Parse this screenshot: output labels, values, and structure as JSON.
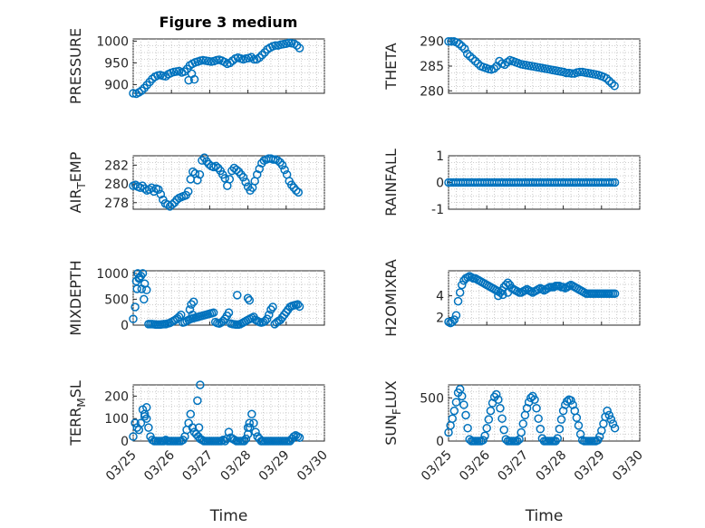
{
  "figure": {
    "title": "Figure 3 medium",
    "marker_color": "#0072BD"
  },
  "chart_data": [
    {
      "type": "scatter",
      "title": "Figure 3 medium",
      "ylabel": "PRESSURE",
      "xlim": [
        0,
        5
      ],
      "ylim": [
        880,
        1005
      ],
      "yticks": [
        900,
        950,
        1000
      ],
      "ytick_labels": [
        "900",
        "950",
        "1000"
      ],
      "xticks": [
        0,
        1,
        2,
        3,
        4,
        5
      ],
      "xtick_labels": [],
      "xlabel": "",
      "x": [
        0,
        0.08,
        0.15,
        0.22,
        0.29,
        0.36,
        0.43,
        0.5,
        0.57,
        0.64,
        0.71,
        0.78,
        0.85,
        0.92,
        0.99,
        1.06,
        1.13,
        1.2,
        1.27,
        1.34,
        1.41,
        1.48,
        1.55,
        1.62,
        1.69,
        1.76,
        1.83,
        1.9,
        1.97,
        2.04,
        2.11,
        2.18,
        2.25,
        2.32,
        2.39,
        2.46,
        2.53,
        2.6,
        2.67,
        2.74,
        2.81,
        2.88,
        2.95,
        3.02,
        3.09,
        3.16,
        3.23,
        3.3,
        3.37,
        3.44,
        3.51,
        3.58,
        3.65,
        3.72,
        3.79,
        3.86,
        3.93,
        4.0,
        4.07,
        4.14,
        4.21,
        4.28,
        4.35,
        1.45,
        1.53,
        1.6
      ],
      "y": [
        880,
        879,
        882,
        886,
        892,
        899,
        906,
        913,
        918,
        921,
        922,
        920,
        919,
        924,
        927,
        929,
        930,
        931,
        928,
        930,
        936,
        944,
        948,
        951,
        953,
        955,
        956,
        955,
        954,
        953,
        954,
        956,
        957,
        955,
        952,
        948,
        950,
        955,
        960,
        962,
        960,
        958,
        960,
        961,
        963,
        958,
        958,
        962,
        968,
        974,
        981,
        985,
        988,
        990,
        990,
        992,
        993,
        994,
        996,
        995,
        994,
        990,
        984,
        910,
        925,
        912
      ]
    },
    {
      "type": "scatter",
      "ylabel": "THETA",
      "xlim": [
        0,
        5
      ],
      "ylim": [
        279.5,
        290.5
      ],
      "yticks": [
        280,
        285,
        290
      ],
      "ytick_labels": [
        "280",
        "285",
        "290"
      ],
      "xticks": [
        0,
        1,
        2,
        3,
        4,
        5
      ],
      "xtick_labels": [],
      "xlabel": "",
      "x": [
        0,
        0.07,
        0.14,
        0.21,
        0.28,
        0.35,
        0.42,
        0.49,
        0.56,
        0.63,
        0.7,
        0.77,
        0.84,
        0.91,
        0.98,
        1.05,
        1.12,
        1.19,
        1.26,
        1.33,
        1.4,
        1.47,
        1.54,
        1.61,
        1.68,
        1.75,
        1.82,
        1.89,
        1.96,
        2.03,
        2.1,
        2.17,
        2.24,
        2.31,
        2.38,
        2.45,
        2.52,
        2.59,
        2.66,
        2.73,
        2.8,
        2.87,
        2.94,
        3.01,
        3.08,
        3.15,
        3.22,
        3.29,
        3.36,
        3.43,
        3.5,
        3.57,
        3.64,
        3.71,
        3.78,
        3.85,
        3.92,
        3.99,
        4.06,
        4.13,
        4.2,
        4.27,
        4.34
      ],
      "y": [
        290,
        290,
        290,
        289.8,
        289.5,
        289,
        288.5,
        287.5,
        287,
        286.5,
        286,
        285.5,
        285,
        284.8,
        284.6,
        284.4,
        284.3,
        284.5,
        285,
        286,
        285.5,
        285.3,
        285.8,
        286.2,
        286,
        285.8,
        285.6,
        285.4,
        285.3,
        285.2,
        285.1,
        285,
        284.9,
        284.8,
        284.7,
        284.6,
        284.5,
        284.4,
        284.3,
        284.2,
        284.1,
        284,
        283.9,
        283.8,
        283.6,
        283.6,
        283.5,
        283.5,
        283.7,
        283.8,
        283.8,
        283.7,
        283.6,
        283.5,
        283.4,
        283.3,
        283.2,
        283,
        282.8,
        282.5,
        282,
        281.5,
        281
      ]
    },
    {
      "type": "scatter",
      "ylabel": "AIR_TEMP",
      "ylabel_main": "AIR",
      "ylabel_sub": "T",
      "ylabel_rest": "EMP",
      "xlim": [
        0,
        5
      ],
      "ylim": [
        277.3,
        283
      ],
      "yticks": [
        278,
        280,
        282
      ],
      "ytick_labels": [
        "278",
        "280",
        "282"
      ],
      "xticks": [
        0,
        1,
        2,
        3,
        4,
        5
      ],
      "xtick_labels": [],
      "xlabel": "",
      "x": [
        0,
        0.06,
        0.12,
        0.18,
        0.24,
        0.3,
        0.36,
        0.42,
        0.48,
        0.54,
        0.6,
        0.66,
        0.72,
        0.78,
        0.84,
        0.9,
        0.96,
        1.02,
        1.08,
        1.14,
        1.2,
        1.26,
        1.32,
        1.38,
        1.44,
        1.5,
        1.56,
        1.62,
        1.68,
        1.74,
        1.8,
        1.86,
        1.92,
        1.98,
        2.04,
        2.1,
        2.16,
        2.22,
        2.28,
        2.34,
        2.4,
        2.46,
        2.52,
        2.58,
        2.64,
        2.7,
        2.76,
        2.82,
        2.88,
        2.94,
        3.0,
        3.06,
        3.12,
        3.18,
        3.24,
        3.3,
        3.36,
        3.42,
        3.48,
        3.54,
        3.6,
        3.66,
        3.72,
        3.78,
        3.84,
        3.9,
        3.96,
        4.02,
        4.08,
        4.14,
        4.2,
        4.26,
        4.32
      ],
      "y": [
        279.8,
        279.9,
        279.7,
        279.6,
        279.8,
        279.5,
        279.3,
        279.4,
        279.6,
        279.2,
        279.5,
        279.4,
        278.9,
        278.3,
        277.9,
        277.8,
        277.6,
        277.8,
        278,
        278.3,
        278.5,
        278.6,
        278.7,
        278.8,
        279.2,
        280.5,
        281.3,
        281.1,
        280.4,
        281,
        282.5,
        282.8,
        282.4,
        282.1,
        281.9,
        281.8,
        281.9,
        281.7,
        281.4,
        281,
        280.6,
        279.8,
        280.5,
        281.4,
        281.7,
        281.5,
        281.3,
        281,
        280.7,
        280.2,
        279.7,
        279.3,
        279.6,
        280.3,
        281,
        281.6,
        282.2,
        282.5,
        282.6,
        282.7,
        282.7,
        282.6,
        282.6,
        282.5,
        282.3,
        282,
        281.5,
        281,
        280.3,
        279.9,
        279.6,
        279.3,
        279.1
      ]
    },
    {
      "type": "scatter",
      "ylabel": "RAINFALL",
      "xlim": [
        0,
        5
      ],
      "ylim": [
        -1,
        1
      ],
      "yticks": [
        -1,
        0,
        1
      ],
      "ytick_labels": [
        "-1",
        "0",
        "1"
      ],
      "xticks": [
        0,
        1,
        2,
        3,
        4,
        5
      ],
      "xtick_labels": [],
      "xlabel": "",
      "x_start": 0,
      "x_end": 4.35,
      "count": 70,
      "value": 0
    },
    {
      "type": "scatter",
      "ylabel": "MIXDEPTH",
      "xlim": [
        0,
        5
      ],
      "ylim": [
        0,
        1050
      ],
      "yticks": [
        0,
        500,
        1000
      ],
      "ytick_labels": [
        "0",
        "500",
        "1000"
      ],
      "xticks": [
        0,
        1,
        2,
        3,
        4,
        5
      ],
      "xtick_labels": [],
      "xlabel": "",
      "x": [
        0,
        0.05,
        0.1,
        0.15,
        0.2,
        0.25,
        0.3,
        0.35,
        0.4,
        0.45,
        0.5,
        0.55,
        0.6,
        0.65,
        0.7,
        0.75,
        0.8,
        0.85,
        0.9,
        0.95,
        1.0,
        1.05,
        1.1,
        1.15,
        1.2,
        1.25,
        1.3,
        1.35,
        1.4,
        1.45,
        1.5,
        1.55,
        1.6,
        1.65,
        1.7,
        1.75,
        1.8,
        1.85,
        1.9,
        1.95,
        2.0,
        2.05,
        2.1,
        2.15,
        2.2,
        2.25,
        2.3,
        2.35,
        2.4,
        2.45,
        2.5,
        2.55,
        2.6,
        2.65,
        2.7,
        2.75,
        2.8,
        2.85,
        2.9,
        2.95,
        3.0,
        3.05,
        3.1,
        3.15,
        3.2,
        3.25,
        3.3,
        3.35,
        3.4,
        3.45,
        3.5,
        3.55,
        3.6,
        3.65,
        3.7,
        3.75,
        3.8,
        3.85,
        3.9,
        3.95,
        4.0,
        4.05,
        4.1,
        4.15,
        4.2,
        4.25,
        4.3,
        4.35,
        0.08,
        0.12,
        0.16,
        0.22,
        0.28,
        1.52,
        1.58,
        2.72,
        3.0,
        3.04,
        1.48,
        1.55
      ],
      "y": [
        120,
        350,
        700,
        900,
        950,
        1000,
        800,
        680,
        20,
        20,
        20,
        15,
        10,
        10,
        10,
        15,
        20,
        20,
        30,
        40,
        60,
        80,
        100,
        130,
        160,
        200,
        50,
        60,
        80,
        100,
        120,
        130,
        140,
        150,
        160,
        170,
        180,
        190,
        200,
        210,
        220,
        230,
        240,
        60,
        40,
        30,
        50,
        80,
        120,
        180,
        240,
        30,
        20,
        15,
        10,
        10,
        20,
        40,
        60,
        80,
        100,
        120,
        140,
        160,
        100,
        80,
        60,
        50,
        60,
        80,
        120,
        200,
        300,
        350,
        20,
        50,
        80,
        100,
        150,
        200,
        250,
        300,
        350,
        370,
        380,
        390,
        400,
        360,
        850,
        1000,
        920,
        700,
        500,
        400,
        450,
        580,
        520,
        480,
        300,
        200
      ]
    },
    {
      "type": "scatter",
      "ylabel": "H2OMIXRA",
      "xlim": [
        0,
        5
      ],
      "ylim": [
        1.3,
        6.3
      ],
      "yticks": [
        2,
        4
      ],
      "ytick_labels": [
        "2",
        "4"
      ],
      "xticks": [
        0,
        1,
        2,
        3,
        4,
        5
      ],
      "xtick_labels": [],
      "xlabel": "",
      "x": [
        0,
        0.05,
        0.1,
        0.15,
        0.2,
        0.25,
        0.3,
        0.35,
        0.4,
        0.45,
        0.5,
        0.55,
        0.6,
        0.65,
        0.7,
        0.75,
        0.8,
        0.85,
        0.9,
        0.95,
        1.0,
        1.05,
        1.1,
        1.15,
        1.2,
        1.25,
        1.3,
        1.35,
        1.4,
        1.45,
        1.5,
        1.55,
        1.6,
        1.65,
        1.7,
        1.75,
        1.8,
        1.85,
        1.9,
        1.95,
        2.0,
        2.05,
        2.1,
        2.15,
        2.2,
        2.25,
        2.3,
        2.35,
        2.4,
        2.45,
        2.5,
        2.55,
        2.6,
        2.65,
        2.7,
        2.75,
        2.8,
        2.85,
        2.9,
        2.95,
        3.0,
        3.05,
        3.1,
        3.15,
        3.2,
        3.25,
        3.3,
        3.35,
        3.4,
        3.45,
        3.5,
        3.55,
        3.6,
        3.65,
        3.7,
        3.75,
        3.8,
        3.85,
        3.9,
        3.95,
        4.0,
        4.05,
        4.1,
        4.15,
        4.2,
        4.25,
        4.3,
        4.35,
        1.3,
        1.42,
        1.55
      ],
      "y": [
        1.6,
        1.5,
        1.6,
        1.8,
        2.2,
        3.5,
        4.3,
        5.0,
        5.4,
        5.6,
        5.7,
        5.8,
        5.7,
        5.6,
        5.6,
        5.5,
        5.4,
        5.3,
        5.2,
        5.1,
        5.0,
        4.9,
        4.8,
        4.7,
        4.6,
        4.5,
        4.4,
        4.3,
        4.5,
        4.8,
        5.0,
        5.2,
        5.0,
        4.7,
        4.6,
        4.5,
        4.4,
        4.3,
        4.3,
        4.4,
        4.5,
        4.6,
        4.5,
        4.4,
        4.3,
        4.4,
        4.5,
        4.6,
        4.7,
        4.6,
        4.5,
        4.6,
        4.7,
        4.8,
        4.8,
        4.8,
        4.9,
        4.9,
        4.9,
        4.8,
        4.8,
        4.7,
        4.8,
        4.9,
        5.0,
        4.9,
        4.8,
        4.7,
        4.6,
        4.5,
        4.4,
        4.3,
        4.2,
        4.2,
        4.2,
        4.2,
        4.2,
        4.2,
        4.2,
        4.2,
        4.2,
        4.2,
        4.2,
        4.2,
        4.2,
        4.2,
        4.2,
        4.2,
        4.0,
        4.1,
        4.3
      ]
    },
    {
      "type": "scatter",
      "ylabel": "TERR_MSL",
      "ylabel_main": "TERR",
      "ylabel_sub": "M",
      "ylabel_rest": "SL",
      "xlim": [
        0,
        5
      ],
      "ylim": [
        0,
        250
      ],
      "yticks": [
        0,
        100,
        200
      ],
      "ytick_labels": [
        "0",
        "100",
        "200"
      ],
      "xticks": [
        0,
        1,
        2,
        3,
        4,
        5
      ],
      "xtick_labels": [
        "03/25",
        "03/26",
        "03/27",
        "03/28",
        "03/29",
        "03/30"
      ],
      "xlabel": "Time",
      "x": [
        0,
        0.05,
        0.1,
        0.15,
        0.2,
        0.25,
        0.3,
        0.35,
        0.4,
        0.45,
        0.5,
        0.55,
        0.6,
        0.65,
        0.7,
        0.75,
        0.8,
        0.85,
        0.9,
        0.95,
        1.0,
        1.05,
        1.1,
        1.15,
        1.2,
        1.25,
        1.3,
        1.35,
        1.4,
        1.45,
        1.5,
        1.55,
        1.6,
        1.65,
        1.7,
        1.75,
        1.8,
        1.85,
        1.9,
        1.95,
        2.0,
        2.05,
        2.1,
        2.15,
        2.2,
        2.25,
        2.3,
        2.35,
        2.4,
        2.45,
        2.5,
        2.55,
        2.6,
        2.65,
        2.7,
        2.75,
        2.8,
        2.85,
        2.9,
        2.95,
        3.0,
        3.05,
        3.1,
        3.15,
        3.2,
        3.25,
        3.3,
        3.35,
        3.4,
        3.45,
        3.5,
        3.55,
        3.6,
        3.65,
        3.7,
        3.75,
        3.8,
        3.85,
        3.9,
        3.95,
        4.0,
        4.05,
        4.1,
        4.15,
        4.2,
        4.25,
        4.3,
        4.35,
        1.68,
        1.75,
        0.35,
        0.3,
        1.72,
        3.0,
        3.04
      ],
      "y": [
        20,
        80,
        60,
        50,
        80,
        140,
        120,
        100,
        60,
        20,
        5,
        0,
        0,
        0,
        0,
        0,
        0,
        5,
        0,
        0,
        0,
        0,
        0,
        0,
        0,
        0,
        5,
        20,
        50,
        80,
        120,
        60,
        40,
        30,
        20,
        10,
        5,
        0,
        0,
        0,
        0,
        0,
        0,
        0,
        0,
        0,
        0,
        5,
        0,
        10,
        40,
        15,
        10,
        5,
        0,
        0,
        0,
        0,
        0,
        10,
        30,
        60,
        120,
        80,
        40,
        20,
        10,
        0,
        0,
        0,
        0,
        0,
        0,
        0,
        0,
        0,
        0,
        0,
        0,
        0,
        0,
        0,
        0,
        10,
        20,
        25,
        20,
        15,
        180,
        250,
        150,
        110,
        60,
        60,
        80
      ]
    },
    {
      "type": "scatter",
      "ylabel": "SUN_FLUX",
      "ylabel_main": "SUN",
      "ylabel_sub": "F",
      "ylabel_rest": "LUX",
      "xlim": [
        0,
        5
      ],
      "ylim": [
        0,
        650
      ],
      "yticks": [
        0,
        500
      ],
      "ytick_labels": [
        "0",
        "500"
      ],
      "xticks": [
        0,
        1,
        2,
        3,
        4,
        5
      ],
      "xtick_labels": [
        "03/25",
        "03/26",
        "03/27",
        "03/28",
        "03/29",
        "03/30"
      ],
      "xlabel": "Time",
      "x": [
        0,
        0.05,
        0.1,
        0.15,
        0.2,
        0.25,
        0.3,
        0.35,
        0.4,
        0.45,
        0.5,
        0.55,
        0.6,
        0.65,
        0.7,
        0.75,
        0.8,
        0.85,
        0.9,
        0.95,
        1.0,
        1.05,
        1.1,
        1.15,
        1.2,
        1.25,
        1.3,
        1.35,
        1.4,
        1.45,
        1.5,
        1.55,
        1.6,
        1.65,
        1.7,
        1.75,
        1.8,
        1.85,
        1.9,
        1.95,
        2.0,
        2.05,
        2.1,
        2.15,
        2.2,
        2.25,
        2.3,
        2.35,
        2.4,
        2.45,
        2.5,
        2.55,
        2.6,
        2.65,
        2.7,
        2.75,
        2.8,
        2.85,
        2.9,
        2.95,
        3.0,
        3.05,
        3.1,
        3.15,
        3.2,
        3.25,
        3.3,
        3.35,
        3.4,
        3.45,
        3.5,
        3.55,
        3.6,
        3.65,
        3.7,
        3.75,
        3.8,
        3.85,
        3.9,
        3.95,
        4.0,
        4.05,
        4.1,
        4.15,
        4.2,
        4.25,
        4.3,
        4.35
      ],
      "y": [
        100,
        180,
        260,
        350,
        450,
        560,
        600,
        520,
        420,
        300,
        150,
        20,
        0,
        0,
        0,
        0,
        0,
        0,
        10,
        60,
        150,
        250,
        350,
        440,
        510,
        540,
        480,
        380,
        260,
        130,
        20,
        0,
        0,
        0,
        0,
        0,
        0,
        20,
        100,
        200,
        300,
        380,
        450,
        500,
        520,
        480,
        380,
        260,
        140,
        30,
        0,
        0,
        0,
        0,
        0,
        0,
        0,
        30,
        140,
        250,
        350,
        420,
        460,
        480,
        470,
        420,
        350,
        270,
        180,
        80,
        10,
        0,
        0,
        0,
        0,
        0,
        0,
        0,
        10,
        50,
        120,
        200,
        280,
        350,
        300,
        250,
        200,
        150
      ]
    }
  ]
}
